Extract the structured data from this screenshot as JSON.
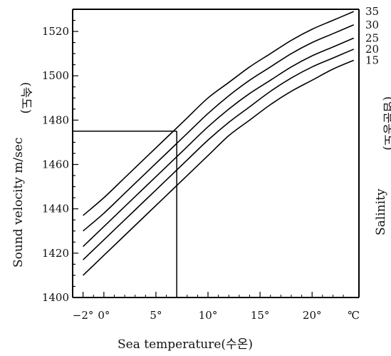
{
  "chart_data": {
    "type": "line",
    "xlabel": "Sea temperature(수온)",
    "ylabel": "Sound velocity m/sec",
    "ylabel_korean": "(속도)",
    "y2label": "Salinity",
    "y2label_korean": "(염분농도)",
    "xlim": [
      -3,
      24.5
    ],
    "ylim": [
      1400,
      1530
    ],
    "x_ticks": [
      -2,
      0,
      5,
      10,
      15,
      20,
      24
    ],
    "x_tick_labels": [
      "−2°",
      "0°",
      "5°",
      "10°",
      "15°",
      "20°",
      "℃"
    ],
    "y_ticks": [
      1400,
      1420,
      1440,
      1460,
      1480,
      1500,
      1520
    ],
    "y_tick_labels": [
      "1400",
      "1420",
      "1440",
      "1460",
      "1480",
      "1500",
      "1520"
    ],
    "grid": false,
    "x": [
      -2,
      0,
      2,
      4,
      6,
      8,
      10,
      12,
      14,
      16,
      18,
      20,
      22,
      24
    ],
    "series": [
      {
        "name": "35",
        "values": [
          1437,
          1445,
          1454,
          1463,
          1472,
          1481,
          1490,
          1497,
          1504,
          1510,
          1516,
          1521,
          1525,
          1529
        ]
      },
      {
        "name": "30",
        "values": [
          1430,
          1438,
          1447,
          1456,
          1465,
          1474,
          1483,
          1491,
          1498,
          1504,
          1510,
          1515,
          1519,
          1523
        ]
      },
      {
        "name": "25",
        "values": [
          1423,
          1432,
          1441,
          1450,
          1459,
          1468,
          1477,
          1485,
          1492,
          1498,
          1504,
          1509,
          1513,
          1517
        ]
      },
      {
        "name": "20",
        "values": [
          1417,
          1426,
          1435,
          1444,
          1453,
          1462,
          1471,
          1479,
          1486,
          1493,
          1499,
          1504,
          1508,
          1512
        ]
      },
      {
        "name": "15",
        "values": [
          1410,
          1419,
          1428,
          1437,
          1446,
          1455,
          1464,
          1473,
          1480,
          1487,
          1493,
          1498,
          1503,
          1507
        ]
      }
    ],
    "annotation": {
      "x": 7,
      "y": 1475
    }
  }
}
